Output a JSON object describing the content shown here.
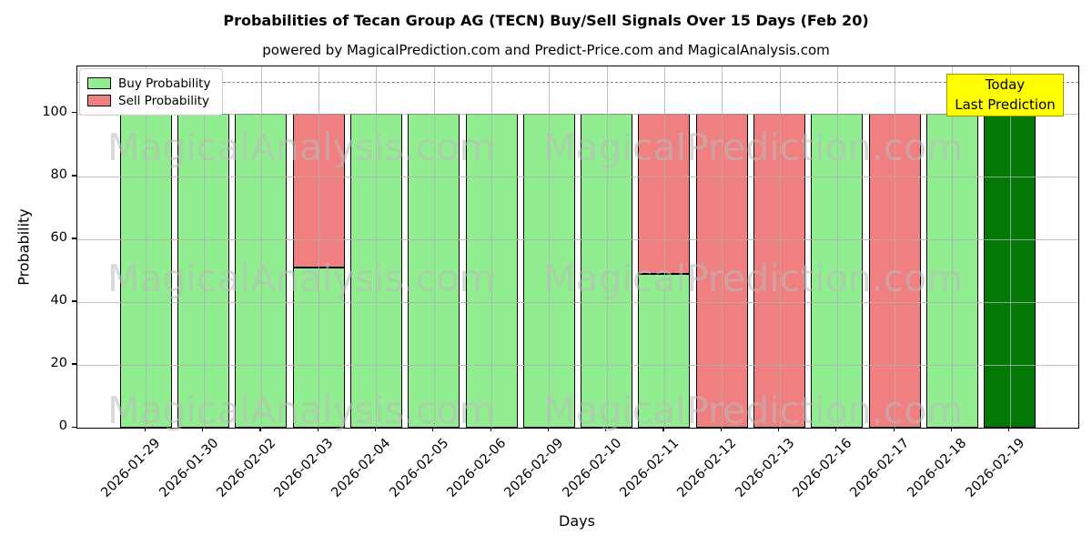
{
  "header": {
    "title": "Probabilities of Tecan Group AG (TECN) Buy/Sell Signals Over 15 Days (Feb 20)",
    "subtitle": "powered by MagicalPrediction.com and Predict-Price.com and MagicalAnalysis.com"
  },
  "legend": {
    "items": [
      {
        "label": "Buy Probability",
        "color": "#90EE90"
      },
      {
        "label": "Sell Probability",
        "color": "#F08080"
      }
    ]
  },
  "annotation": {
    "line1": "Today",
    "line2": "Last Prediction",
    "bg_color": "#FFFF00",
    "border_color": "#9a9a00"
  },
  "axes": {
    "x_label": "Days",
    "y_label": "Probability",
    "y_ticks": [
      0,
      20,
      40,
      60,
      80,
      100
    ]
  },
  "watermarks": {
    "left_text": "MagicalAnalysis.com",
    "right_text": "MagicalPrediction.com"
  },
  "chart_data": {
    "type": "bar",
    "stacked": true,
    "title": "Probabilities of Tecan Group AG (TECN) Buy/Sell Signals Over 15 Days (Feb 20)",
    "xlabel": "Days",
    "ylabel": "Probability",
    "ylim": [
      0,
      115
    ],
    "grid": true,
    "legend_position": "upper left",
    "threshold_dashed_line_y": 110,
    "categories": [
      "2026-01-29",
      "2026-01-30",
      "2026-02-02",
      "2026-02-03",
      "2026-02-04",
      "2026-02-05",
      "2026-02-06",
      "2026-02-09",
      "2026-02-10",
      "2026-02-11",
      "2026-02-12",
      "2026-02-13",
      "2026-02-16",
      "2026-02-17",
      "2026-02-18",
      "2026-02-19"
    ],
    "series": [
      {
        "name": "Buy Probability",
        "color": "#90EE90",
        "values": [
          100,
          100,
          100,
          51,
          100,
          100,
          100,
          100,
          100,
          49,
          0,
          0,
          100,
          0,
          100,
          100
        ]
      },
      {
        "name": "Sell Probability",
        "color": "#F08080",
        "values": [
          0,
          0,
          0,
          49,
          0,
          0,
          0,
          0,
          0,
          51,
          100,
          100,
          0,
          100,
          0,
          0
        ]
      }
    ],
    "today_bar": {
      "category": "2026-02-19",
      "index": 15,
      "color": "#047804",
      "value": 100
    }
  }
}
